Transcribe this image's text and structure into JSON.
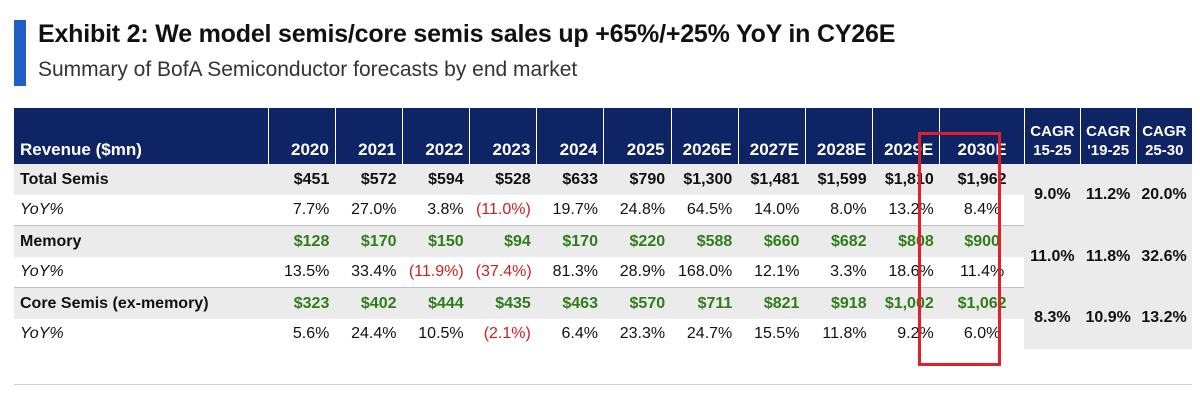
{
  "exhibit": {
    "title": "Exhibit 2: We model semis/core semis sales up +65%/+25% YoY in CY26E",
    "subtitle": "Summary of BofA Semiconductor forecasts by end market"
  },
  "colors": {
    "header_bg": "#0f2464",
    "accent": "#1f5fc4",
    "green": "#2e7d1a",
    "negative": "#cc1f1f",
    "highlight": "#e0202a"
  },
  "table": {
    "header_label": "Revenue ($mn)",
    "years": [
      "2020",
      "2021",
      "2022",
      "2023",
      "2024",
      "2025",
      "2026E",
      "2027E",
      "2028E",
      "2029E",
      "2030E"
    ],
    "cagr_headers": [
      {
        "line1": "CAGR",
        "line2": "15-25"
      },
      {
        "line1": "CAGR",
        "line2": "'19-25"
      },
      {
        "line1": "CAGR",
        "line2": "25-30"
      }
    ],
    "rows": [
      {
        "label": "Total Semis",
        "values": [
          "$451",
          "$572",
          "$594",
          "$528",
          "$633",
          "$790",
          "$1,300",
          "$1,481",
          "$1,599",
          "$1,810",
          "$1,962"
        ],
        "cagr": [
          "9.0%",
          "11.2%",
          "20.0%"
        ],
        "yoy_label": "YoY%",
        "yoy": [
          "7.7%",
          "27.0%",
          "3.8%",
          "(11.0%)",
          "19.7%",
          "24.8%",
          "64.5%",
          "14.0%",
          "8.0%",
          "13.2%",
          "8.4%"
        ]
      },
      {
        "label": "Memory",
        "values": [
          "$128",
          "$170",
          "$150",
          "$94",
          "$170",
          "$220",
          "$588",
          "$660",
          "$682",
          "$808",
          "$900"
        ],
        "cagr": [
          "11.0%",
          "11.8%",
          "32.6%"
        ],
        "yoy_label": "YoY%",
        "yoy": [
          "13.5%",
          "33.4%",
          "(11.9%)",
          "(37.4%)",
          "81.3%",
          "28.9%",
          "168.0%",
          "12.1%",
          "3.3%",
          "18.6%",
          "11.4%"
        ]
      },
      {
        "label": "Core Semis (ex-memory)",
        "values": [
          "$323",
          "$402",
          "$444",
          "$435",
          "$463",
          "$570",
          "$711",
          "$821",
          "$918",
          "$1,002",
          "$1,062"
        ],
        "cagr": [
          "8.3%",
          "10.9%",
          "13.2%"
        ],
        "yoy_label": "YoY%",
        "yoy": [
          "5.6%",
          "24.4%",
          "10.5%",
          "(2.1%)",
          "6.4%",
          "23.3%",
          "24.7%",
          "15.5%",
          "11.8%",
          "9.2%",
          "6.0%"
        ]
      }
    ]
  }
}
